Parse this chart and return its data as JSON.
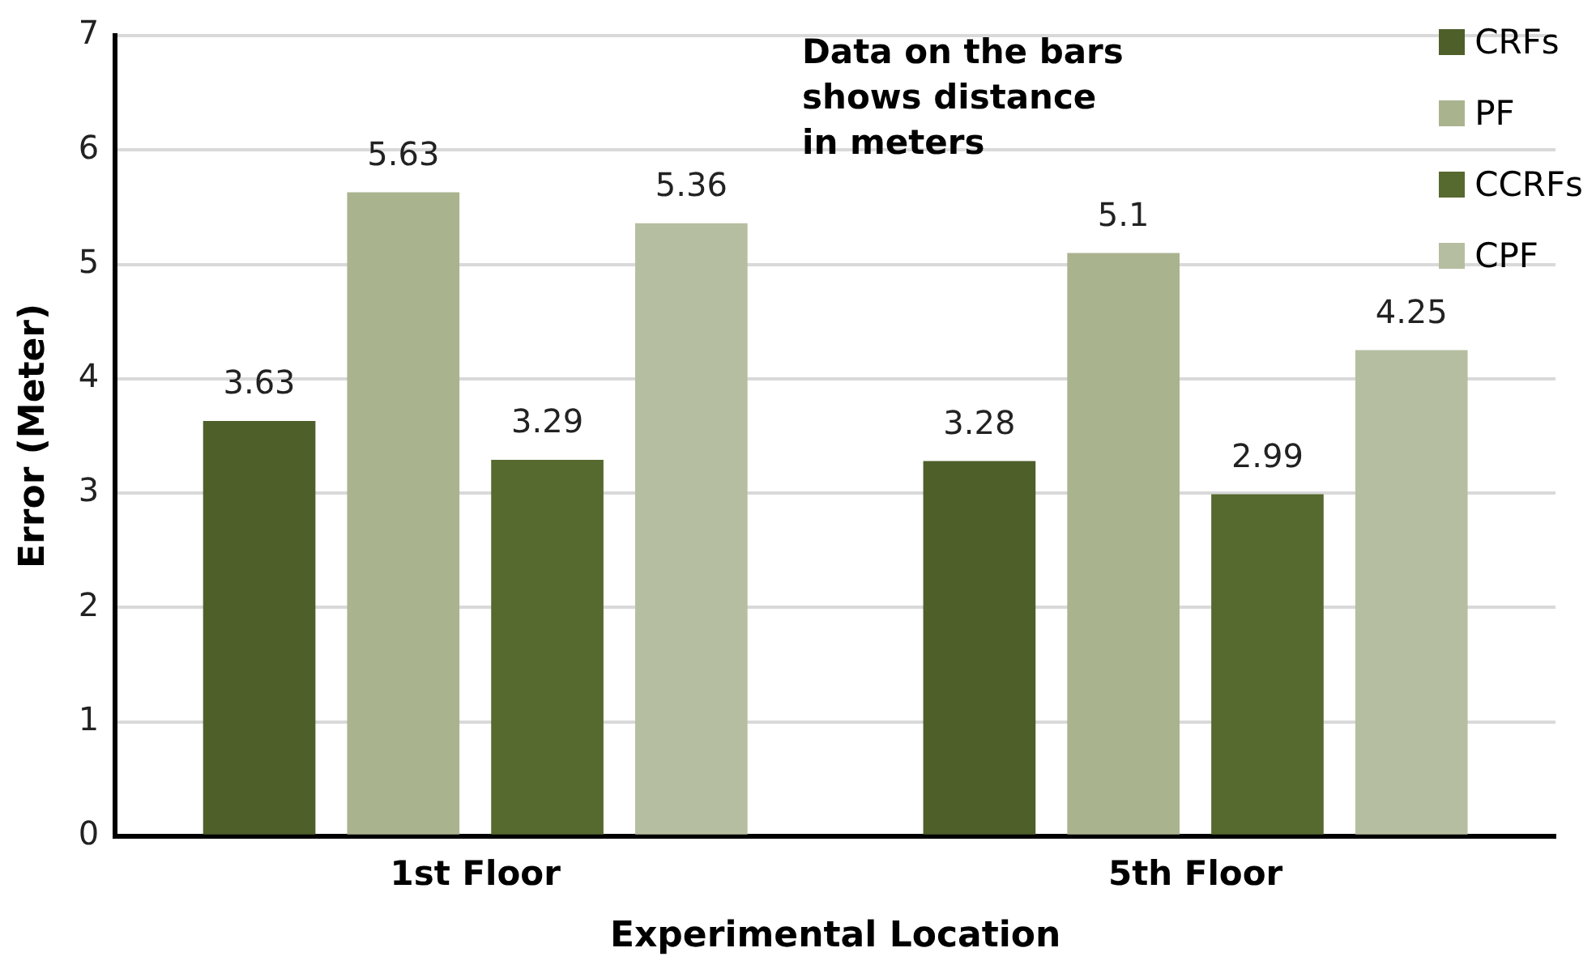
{
  "chart_data": {
    "type": "bar",
    "xlabel": "Experimental Location",
    "ylabel": "Error (Meter)",
    "categories": [
      "1st Floor",
      "5th Floor"
    ],
    "series": [
      {
        "name": "CRFs",
        "color": "#4e5f2a",
        "values": [
          3.63,
          3.28
        ]
      },
      {
        "name": "PF",
        "color": "#a9b48f",
        "values": [
          5.63,
          5.1
        ]
      },
      {
        "name": "CCRFs",
        "color": "#56692f",
        "values": [
          3.29,
          2.99
        ]
      },
      {
        "name": "CPF",
        "color": "#b5bea0",
        "values": [
          5.36,
          4.25
        ]
      }
    ],
    "ylim": [
      0,
      7
    ],
    "yticks": [
      0,
      1,
      2,
      3,
      4,
      5,
      6,
      7
    ],
    "grid": "y",
    "legend": "top right",
    "data_labels": true,
    "annotations": [
      "Data on the bars shows  distance in meters"
    ]
  }
}
